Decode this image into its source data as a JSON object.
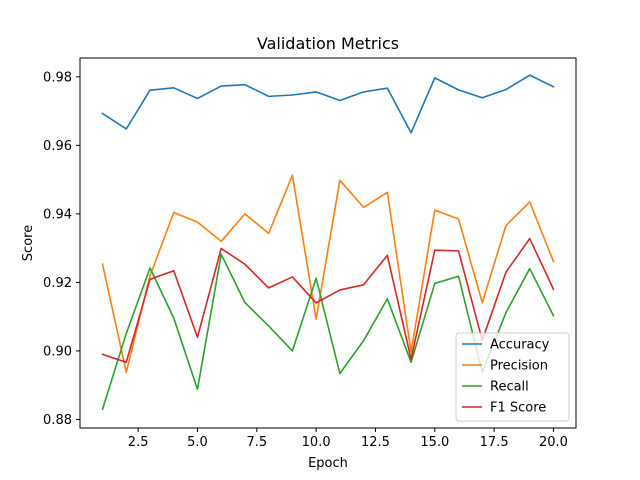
{
  "chart_data": {
    "type": "line",
    "title": "Validation Metrics",
    "xlabel": "Epoch",
    "ylabel": "Score",
    "xlim": [
      0.05,
      20.95
    ],
    "ylim": [
      0.8775,
      0.9855
    ],
    "grid": false,
    "legend_position": "lower-right",
    "x_ticks": [
      2.5,
      5.0,
      7.5,
      10.0,
      12.5,
      15.0,
      17.5,
      20.0
    ],
    "x_tick_labels": [
      "2.5",
      "5.0",
      "7.5",
      "10.0",
      "12.5",
      "15.0",
      "17.5",
      "20.0"
    ],
    "y_ticks": [
      0.88,
      0.9,
      0.92,
      0.94,
      0.96,
      0.98
    ],
    "y_tick_labels": [
      "0.88",
      "0.90",
      "0.92",
      "0.94",
      "0.96",
      "0.98"
    ],
    "x": [
      1,
      2,
      3,
      4,
      5,
      6,
      7,
      8,
      9,
      10,
      11,
      12,
      13,
      14,
      15,
      16,
      17,
      18,
      19,
      20
    ],
    "series": [
      {
        "name": "Accuracy",
        "color": "#1f77b4",
        "values": [
          0.9693,
          0.9648,
          0.9761,
          0.9768,
          0.9737,
          0.9773,
          0.9777,
          0.9743,
          0.9747,
          0.9756,
          0.9731,
          0.9756,
          0.9767,
          0.9637,
          0.9797,
          0.9762,
          0.9739,
          0.9763,
          0.9805,
          0.9771
        ]
      },
      {
        "name": "Precision",
        "color": "#ff7f0e",
        "values": [
          0.9253,
          0.8938,
          0.9219,
          0.9404,
          0.9376,
          0.932,
          0.94,
          0.9343,
          0.9513,
          0.9093,
          0.9498,
          0.9419,
          0.9463,
          0.8997,
          0.9411,
          0.9385,
          0.9141,
          0.9366,
          0.9435,
          0.9261
        ]
      },
      {
        "name": "Recall",
        "color": "#2ca02c",
        "values": [
          0.883,
          0.9051,
          0.9242,
          0.9096,
          0.8888,
          0.9282,
          0.9141,
          0.9073,
          0.9,
          0.9212,
          0.8934,
          0.903,
          0.9152,
          0.8967,
          0.9197,
          0.9218,
          0.8938,
          0.9112,
          0.924,
          0.9103
        ]
      },
      {
        "name": "F1 Score",
        "color": "#d62728",
        "values": [
          0.899,
          0.8967,
          0.9209,
          0.9234,
          0.904,
          0.9299,
          0.9253,
          0.9184,
          0.9216,
          0.914,
          0.9178,
          0.9193,
          0.9279,
          0.8976,
          0.9294,
          0.9292,
          0.9031,
          0.923,
          0.9328,
          0.918
        ]
      }
    ]
  }
}
